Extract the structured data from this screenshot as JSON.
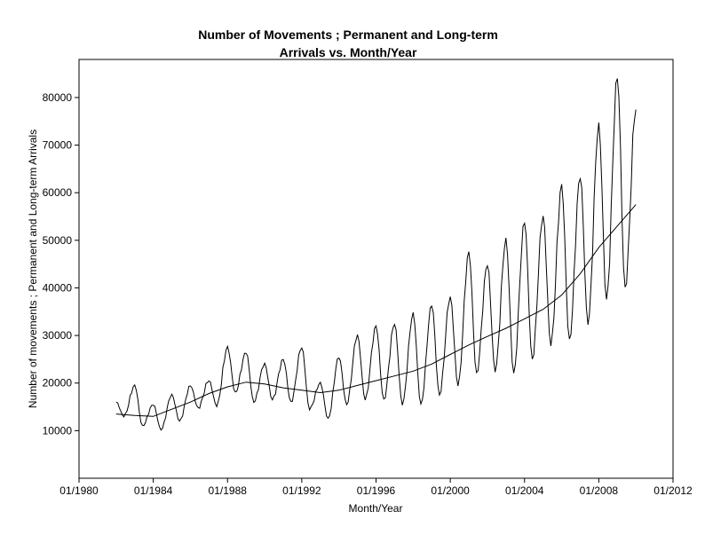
{
  "chart_data": {
    "type": "line",
    "title": "Number of Movements ;  Permanent and Long-term",
    "subtitle": "Arrivals vs. Month/Year",
    "xlabel": "Month/Year",
    "ylabel": "Number of movements ;  Permanent and Long-term Arrivals",
    "xlim": [
      "1980-01",
      "2012-01"
    ],
    "ylim": [
      0,
      88000
    ],
    "x_ticks": [
      "01/1980",
      "01/1984",
      "01/1988",
      "01/1992",
      "01/1996",
      "01/2000",
      "01/2004",
      "01/2008",
      "01/2012"
    ],
    "y_ticks": [
      10000,
      20000,
      30000,
      40000,
      50000,
      60000,
      70000,
      80000
    ],
    "grid": false,
    "legend": "none",
    "series_color": "#000000",
    "data_range": [
      "1982-01",
      "2010-01"
    ],
    "seasonal_peak_month": 1,
    "seasonal_trough_month": 6,
    "annual_peaks": [
      {
        "year": 1982,
        "value": 16000
      },
      {
        "year": 1983,
        "value": 19500
      },
      {
        "year": 1984,
        "value": 15500
      },
      {
        "year": 1985,
        "value": 17500
      },
      {
        "year": 1986,
        "value": 19500
      },
      {
        "year": 1987,
        "value": 20500
      },
      {
        "year": 1988,
        "value": 27500
      },
      {
        "year": 1989,
        "value": 26500
      },
      {
        "year": 1990,
        "value": 24000
      },
      {
        "year": 1991,
        "value": 25000
      },
      {
        "year": 1992,
        "value": 27500
      },
      {
        "year": 1993,
        "value": 20000
      },
      {
        "year": 1994,
        "value": 25500
      },
      {
        "year": 1995,
        "value": 30000
      },
      {
        "year": 1996,
        "value": 32000
      },
      {
        "year": 1997,
        "value": 32500
      },
      {
        "year": 1998,
        "value": 34500
      },
      {
        "year": 1999,
        "value": 36500
      },
      {
        "year": 2000,
        "value": 38000
      },
      {
        "year": 2001,
        "value": 47500
      },
      {
        "year": 2002,
        "value": 45000
      },
      {
        "year": 2003,
        "value": 50000
      },
      {
        "year": 2004,
        "value": 54000
      },
      {
        "year": 2005,
        "value": 55000
      },
      {
        "year": 2006,
        "value": 61500
      },
      {
        "year": 2007,
        "value": 63500
      },
      {
        "year": 2008,
        "value": 74000
      },
      {
        "year": 2009,
        "value": 84500
      },
      {
        "year": 2010,
        "value": 77500
      }
    ],
    "annual_troughs": [
      {
        "year": 1982,
        "value": 13000
      },
      {
        "year": 1983,
        "value": 11000
      },
      {
        "year": 1984,
        "value": 10200
      },
      {
        "year": 1985,
        "value": 12000
      },
      {
        "year": 1986,
        "value": 14800
      },
      {
        "year": 1987,
        "value": 15200
      },
      {
        "year": 1988,
        "value": 18000
      },
      {
        "year": 1989,
        "value": 16000
      },
      {
        "year": 1990,
        "value": 16500
      },
      {
        "year": 1991,
        "value": 16000
      },
      {
        "year": 1992,
        "value": 14500
      },
      {
        "year": 1993,
        "value": 12500
      },
      {
        "year": 1994,
        "value": 15500
      },
      {
        "year": 1995,
        "value": 16500
      },
      {
        "year": 1996,
        "value": 16500
      },
      {
        "year": 1997,
        "value": 15500
      },
      {
        "year": 1998,
        "value": 15500
      },
      {
        "year": 1999,
        "value": 17500
      },
      {
        "year": 2000,
        "value": 19500
      },
      {
        "year": 2001,
        "value": 22000
      },
      {
        "year": 2002,
        "value": 22500
      },
      {
        "year": 2003,
        "value": 22000
      },
      {
        "year": 2004,
        "value": 25000
      },
      {
        "year": 2005,
        "value": 28000
      },
      {
        "year": 2006,
        "value": 29000
      },
      {
        "year": 2007,
        "value": 32500
      },
      {
        "year": 2008,
        "value": 37500
      },
      {
        "year": 2009,
        "value": 40000
      }
    ],
    "trend": [
      {
        "date": "1982-01",
        "value": 13500
      },
      {
        "date": "1983-01",
        "value": 13200
      },
      {
        "date": "1984-01",
        "value": 13000
      },
      {
        "date": "1985-01",
        "value": 14500
      },
      {
        "date": "1986-01",
        "value": 16000
      },
      {
        "date": "1987-01",
        "value": 17800
      },
      {
        "date": "1988-01",
        "value": 19200
      },
      {
        "date": "1989-01",
        "value": 20200
      },
      {
        "date": "1990-01",
        "value": 19800
      },
      {
        "date": "1991-01",
        "value": 19000
      },
      {
        "date": "1992-01",
        "value": 18500
      },
      {
        "date": "1993-01",
        "value": 18000
      },
      {
        "date": "1994-01",
        "value": 18500
      },
      {
        "date": "1995-01",
        "value": 19500
      },
      {
        "date": "1996-01",
        "value": 20500
      },
      {
        "date": "1997-01",
        "value": 21500
      },
      {
        "date": "1998-01",
        "value": 22500
      },
      {
        "date": "1999-01",
        "value": 24000
      },
      {
        "date": "2000-01",
        "value": 26000
      },
      {
        "date": "2001-01",
        "value": 28000
      },
      {
        "date": "2002-01",
        "value": 29800
      },
      {
        "date": "2003-01",
        "value": 31500
      },
      {
        "date": "2004-01",
        "value": 33500
      },
      {
        "date": "2005-01",
        "value": 35500
      },
      {
        "date": "2006-01",
        "value": 38500
      },
      {
        "date": "2007-01",
        "value": 43000
      },
      {
        "date": "2008-01",
        "value": 48500
      },
      {
        "date": "2009-01",
        "value": 53000
      },
      {
        "date": "2010-01",
        "value": 57500
      }
    ]
  }
}
